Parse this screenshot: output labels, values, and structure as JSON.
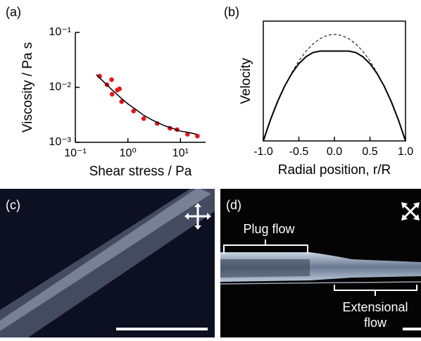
{
  "chart_data": [
    {
      "type": "scatter",
      "label": "(a)",
      "y_label": "Viscosity / Pa s",
      "x_label": "Shear stress / Pa",
      "log_x": true,
      "log_y": true,
      "xlim": [
        0.1,
        30
      ],
      "ylim": [
        0.001,
        0.1
      ],
      "xticks": [
        {
          "value": 0.1,
          "label": "10⁻¹"
        },
        {
          "value": 1,
          "label": "10⁰"
        },
        {
          "value": 10,
          "label": "10¹"
        }
      ],
      "yticks": [
        {
          "value": 0.001,
          "label": "10⁻³"
        },
        {
          "value": 0.01,
          "label": "10⁻²"
        },
        {
          "value": 0.1,
          "label": "10⁻¹"
        }
      ],
      "series": [
        {
          "type": "scatter",
          "color": "#e8141c",
          "x": [
            0.29,
            0.4,
            0.49,
            0.5,
            0.63,
            0.69,
            0.76,
            1.28,
            2.0,
            3.6,
            6.3,
            8.6,
            13.6,
            21
          ],
          "values": [
            0.016,
            0.0112,
            0.0138,
            0.0075,
            0.0089,
            0.0094,
            0.0055,
            0.0037,
            0.0027,
            0.0022,
            0.0018,
            0.0017,
            0.0014,
            0.0013
          ]
        },
        {
          "type": "line",
          "color": "#000000",
          "x": [
            0.25,
            0.35,
            0.5,
            0.7,
            1,
            1.5,
            2,
            3,
            5,
            7,
            10,
            15,
            20
          ],
          "values": [
            0.017,
            0.0125,
            0.009,
            0.0067,
            0.005,
            0.0038,
            0.0031,
            0.0025,
            0.002,
            0.0018,
            0.0016,
            0.0015,
            0.0014
          ]
        }
      ]
    },
    {
      "type": "line",
      "label": "(b)",
      "y_label": "Velocity",
      "x_label": "Radial position, r/R",
      "xlim": [
        -1,
        1
      ],
      "ylim": [
        0,
        1
      ],
      "xticks": [
        {
          "value": -1,
          "label": "-1.0"
        },
        {
          "value": -0.5,
          "label": "-0.5"
        },
        {
          "value": 0,
          "label": "0.0"
        },
        {
          "value": 0.5,
          "label": "0.5"
        },
        {
          "value": 1,
          "label": "1.0"
        }
      ],
      "x": [
        -1,
        -0.9,
        -0.8,
        -0.7,
        -0.6,
        -0.5,
        -0.4,
        -0.3,
        -0.2,
        -0.1,
        0,
        0.1,
        0.2,
        0.3,
        0.4,
        0.5,
        0.6,
        0.7,
        0.8,
        0.9,
        1
      ],
      "series": [
        {
          "color": "#000000",
          "style": "solid",
          "values": [
            0,
            0.176,
            0.328,
            0.457,
            0.5625,
            0.645,
            0.703,
            0.738,
            0.75,
            0.75,
            0.75,
            0.75,
            0.75,
            0.738,
            0.703,
            0.645,
            0.5625,
            0.457,
            0.328,
            0.176,
            0
          ]
        },
        {
          "color": "#000000",
          "style": "dashed",
          "values": [
            0,
            0.169,
            0.32,
            0.454,
            0.57,
            0.668,
            0.748,
            0.81,
            0.854,
            0.881,
            0.89,
            0.881,
            0.854,
            0.81,
            0.748,
            0.668,
            0.57,
            0.454,
            0.32,
            0.169,
            0
          ]
        }
      ]
    }
  ],
  "images": [
    {
      "label": "(c)"
    },
    {
      "label": "(d)",
      "annotations": [
        "Plug flow",
        "Extensional",
        "flow"
      ]
    }
  ]
}
